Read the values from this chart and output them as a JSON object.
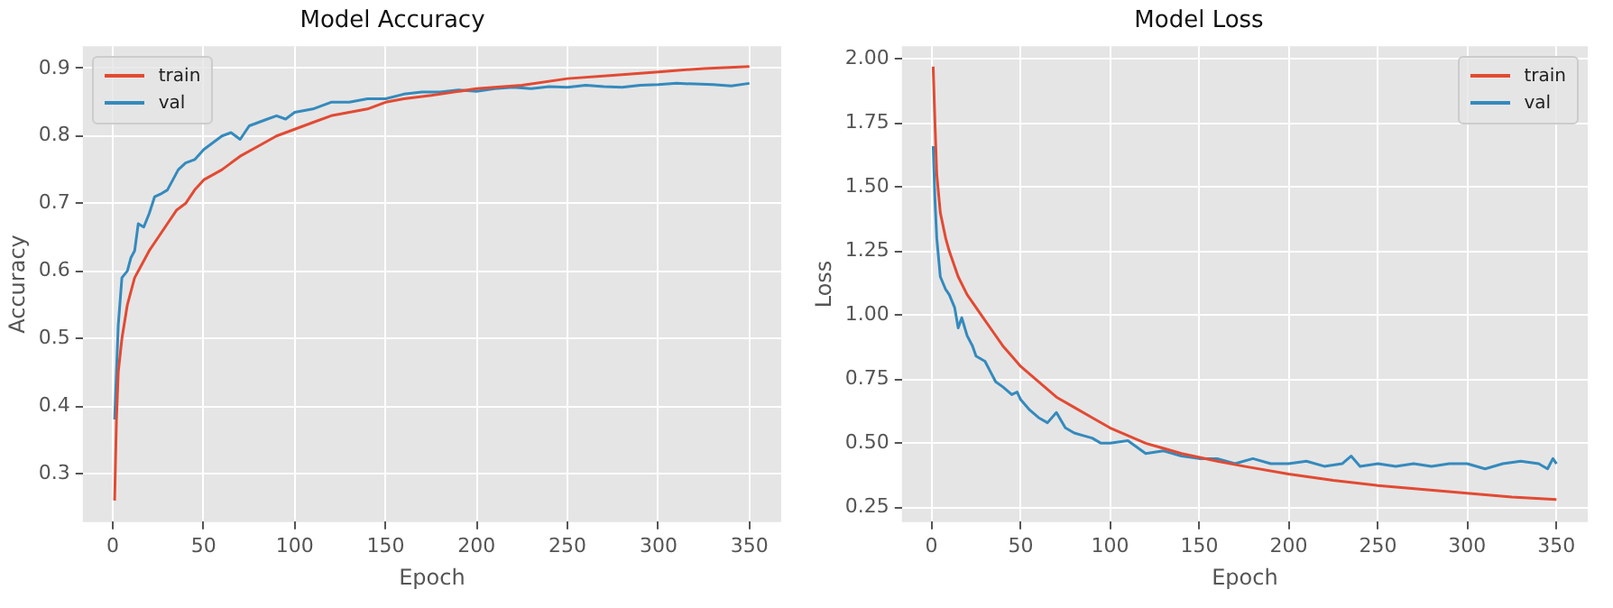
{
  "chart_data": [
    {
      "type": "line",
      "title": "Model Accuracy",
      "xlabel": "Epoch",
      "ylabel": "Accuracy",
      "xlim": [
        -16.5,
        367.5
      ],
      "xticks": [
        0,
        50,
        100,
        150,
        200,
        250,
        300,
        350
      ],
      "ylim": [
        0.228,
        0.933
      ],
      "yticks": [
        0.3,
        0.4,
        0.5,
        0.6,
        0.7,
        0.8,
        0.9
      ],
      "grid": true,
      "legend": "top left",
      "marker": "none",
      "line_style": "solid",
      "series": [
        {
          "name": "train",
          "color": "#e24a33",
          "x": [
            1,
            2,
            3,
            5,
            8,
            12,
            16,
            20,
            25,
            30,
            35,
            40,
            45,
            50,
            60,
            70,
            80,
            90,
            100,
            110,
            120,
            130,
            140,
            150,
            160,
            175,
            200,
            225,
            250,
            275,
            300,
            325,
            350
          ],
          "values": [
            0.26,
            0.38,
            0.45,
            0.5,
            0.55,
            0.59,
            0.61,
            0.63,
            0.65,
            0.67,
            0.69,
            0.7,
            0.72,
            0.735,
            0.75,
            0.77,
            0.785,
            0.8,
            0.81,
            0.82,
            0.83,
            0.835,
            0.84,
            0.85,
            0.855,
            0.86,
            0.87,
            0.875,
            0.885,
            0.89,
            0.895,
            0.9,
            0.903
          ]
        },
        {
          "name": "val",
          "color": "#348abd",
          "x": [
            1,
            3,
            5,
            8,
            10,
            12,
            14,
            17,
            20,
            23,
            27,
            30,
            33,
            36,
            40,
            45,
            50,
            55,
            60,
            65,
            70,
            75,
            80,
            85,
            90,
            95,
            100,
            110,
            120,
            130,
            140,
            150,
            160,
            170,
            180,
            190,
            200,
            210,
            220,
            230,
            240,
            250,
            260,
            270,
            280,
            290,
            300,
            310,
            320,
            330,
            340,
            350
          ],
          "values": [
            0.38,
            0.52,
            0.59,
            0.6,
            0.62,
            0.63,
            0.67,
            0.665,
            0.685,
            0.71,
            0.715,
            0.72,
            0.735,
            0.75,
            0.76,
            0.765,
            0.78,
            0.79,
            0.8,
            0.805,
            0.795,
            0.815,
            0.82,
            0.825,
            0.83,
            0.825,
            0.835,
            0.84,
            0.85,
            0.85,
            0.855,
            0.855,
            0.862,
            0.865,
            0.865,
            0.868,
            0.866,
            0.87,
            0.872,
            0.87,
            0.873,
            0.872,
            0.875,
            0.873,
            0.872,
            0.875,
            0.876,
            0.878,
            0.877,
            0.876,
            0.874,
            0.878
          ]
        }
      ]
    },
    {
      "type": "line",
      "title": "Model Loss",
      "xlabel": "Epoch",
      "ylabel": "Loss",
      "xlim": [
        -16.5,
        367.5
      ],
      "xticks": [
        0,
        50,
        100,
        150,
        200,
        250,
        300,
        350
      ],
      "ylim": [
        0.192,
        2.05
      ],
      "yticks": [
        {
          "value": 2,
          "label": "2.00"
        },
        1.75,
        {
          "value": 1.5,
          "label": "1.50"
        },
        1.25,
        {
          "value": 1,
          "label": "1.00"
        },
        0.75,
        {
          "value": 0.5,
          "label": "0.50"
        },
        0.25
      ],
      "grid": true,
      "legend": "top right",
      "marker": "none",
      "line_style": "solid",
      "series": [
        {
          "name": "train",
          "color": "#e24a33",
          "x": [
            1,
            2,
            3,
            5,
            8,
            10,
            15,
            20,
            25,
            30,
            35,
            40,
            45,
            50,
            60,
            70,
            80,
            90,
            100,
            110,
            120,
            130,
            140,
            150,
            160,
            175,
            200,
            225,
            250,
            275,
            300,
            325,
            350
          ],
          "values": [
            1.97,
            1.75,
            1.55,
            1.4,
            1.3,
            1.25,
            1.15,
            1.08,
            1.03,
            0.98,
            0.93,
            0.88,
            0.84,
            0.8,
            0.74,
            0.68,
            0.64,
            0.6,
            0.56,
            0.53,
            0.5,
            0.48,
            0.46,
            0.445,
            0.43,
            0.41,
            0.38,
            0.355,
            0.335,
            0.32,
            0.305,
            0.29,
            0.28
          ]
        },
        {
          "name": "val",
          "color": "#348abd",
          "x": [
            1,
            2,
            3,
            5,
            8,
            10,
            13,
            15,
            17,
            20,
            23,
            25,
            30,
            33,
            36,
            40,
            45,
            48,
            50,
            55,
            60,
            65,
            70,
            75,
            80,
            85,
            90,
            95,
            100,
            110,
            120,
            130,
            140,
            150,
            160,
            170,
            180,
            190,
            200,
            210,
            220,
            230,
            235,
            240,
            250,
            260,
            270,
            280,
            290,
            300,
            310,
            320,
            330,
            340,
            345,
            348,
            350
          ],
          "values": [
            1.66,
            1.45,
            1.3,
            1.15,
            1.1,
            1.08,
            1.03,
            0.95,
            0.99,
            0.92,
            0.88,
            0.84,
            0.82,
            0.78,
            0.74,
            0.72,
            0.69,
            0.7,
            0.67,
            0.63,
            0.6,
            0.58,
            0.62,
            0.56,
            0.54,
            0.53,
            0.52,
            0.5,
            0.5,
            0.51,
            0.46,
            0.47,
            0.45,
            0.44,
            0.44,
            0.42,
            0.44,
            0.42,
            0.42,
            0.43,
            0.41,
            0.42,
            0.45,
            0.41,
            0.42,
            0.41,
            0.42,
            0.41,
            0.42,
            0.42,
            0.4,
            0.42,
            0.43,
            0.42,
            0.4,
            0.44,
            0.42
          ]
        }
      ]
    }
  ]
}
